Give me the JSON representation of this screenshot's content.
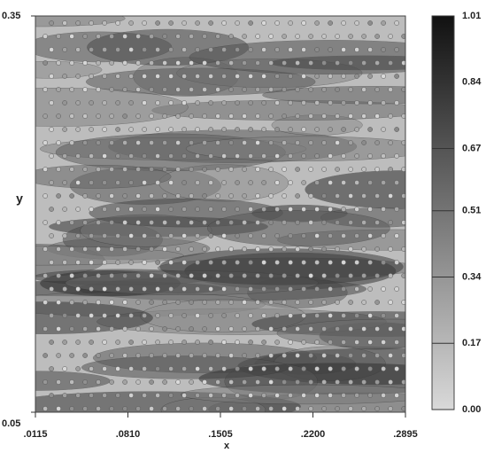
{
  "chart_data": {
    "type": "contour",
    "xlabel": "x",
    "ylabel": "y",
    "xlim": [
      0.0115,
      0.2895
    ],
    "xticks": [
      {
        "value": 0.0115,
        "label": ".0115"
      },
      {
        "value": 0.081,
        "label": ".0810"
      },
      {
        "value": 0.1505,
        "label": ".1505"
      },
      {
        "value": 0.22,
        "label": ".2200"
      },
      {
        "value": 0.2895,
        "label": ".2895"
      }
    ],
    "ylim": [
      0.05,
      0.35
    ],
    "yticks": [
      0.05,
      0.35
    ],
    "colormap": [
      "#d9d9d9",
      "#111111"
    ],
    "colorbar": {
      "lim": [
        0,
        1.01
      ],
      "ticks": [
        {
          "value": 0,
          "label": "0.00"
        },
        0.17,
        0.34,
        0.51,
        0.67,
        0.84,
        1.01
      ]
    }
  }
}
